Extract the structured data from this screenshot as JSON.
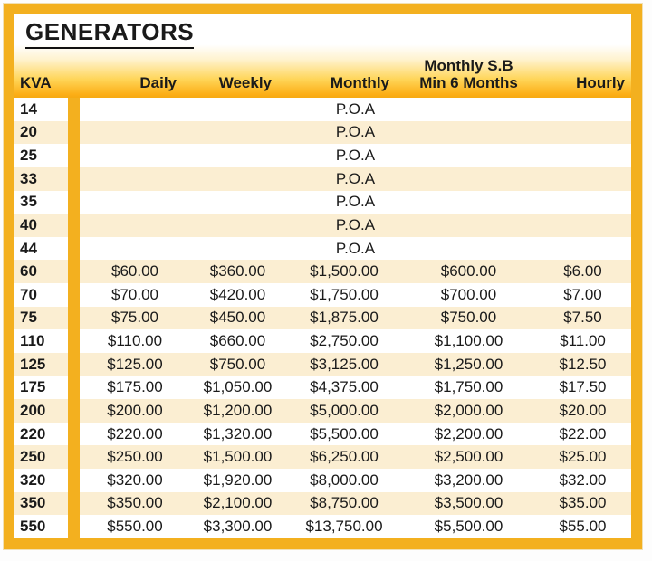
{
  "title": "GENERATORS",
  "header": {
    "kva": "KVA",
    "daily": "Daily",
    "weekly": "Weekly",
    "monthly": "Monthly",
    "monthly_sb_line1": "Monthly S.B",
    "monthly_sb_line2": "Min 6 Months",
    "hourly": "Hourly"
  },
  "poa_label": "P.O.A",
  "rows": [
    {
      "kva": "14",
      "poa": true
    },
    {
      "kva": "20",
      "poa": true
    },
    {
      "kva": "25",
      "poa": true
    },
    {
      "kva": "33",
      "poa": true
    },
    {
      "kva": "35",
      "poa": true
    },
    {
      "kva": "40",
      "poa": true
    },
    {
      "kva": "44",
      "poa": true
    },
    {
      "kva": "60",
      "daily": "$60.00",
      "weekly": "$360.00",
      "monthly": "$1,500.00",
      "min6": "$600.00",
      "hourly": "$6.00"
    },
    {
      "kva": "70",
      "daily": "$70.00",
      "weekly": "$420.00",
      "monthly": "$1,750.00",
      "min6": "$700.00",
      "hourly": "$7.00"
    },
    {
      "kva": "75",
      "daily": "$75.00",
      "weekly": "$450.00",
      "monthly": "$1,875.00",
      "min6": "$750.00",
      "hourly": "$7.50"
    },
    {
      "kva": "110",
      "daily": "$110.00",
      "weekly": "$660.00",
      "monthly": "$2,750.00",
      "min6": "$1,100.00",
      "hourly": "$11.00"
    },
    {
      "kva": "125",
      "daily": "$125.00",
      "weekly": "$750.00",
      "monthly": "$3,125.00",
      "min6": "$1,250.00",
      "hourly": "$12.50"
    },
    {
      "kva": "175",
      "daily": "$175.00",
      "weekly": "$1,050.00",
      "monthly": "$4,375.00",
      "min6": "$1,750.00",
      "hourly": "$17.50"
    },
    {
      "kva": "200",
      "daily": "$200.00",
      "weekly": "$1,200.00",
      "monthly": "$5,000.00",
      "min6": "$2,000.00",
      "hourly": "$20.00"
    },
    {
      "kva": "220",
      "daily": "$220.00",
      "weekly": "$1,320.00",
      "monthly": "$5,500.00",
      "min6": "$2,200.00",
      "hourly": "$22.00"
    },
    {
      "kva": "250",
      "daily": "$250.00",
      "weekly": "$1,500.00",
      "monthly": "$6,250.00",
      "min6": "$2,500.00",
      "hourly": "$25.00"
    },
    {
      "kva": "320",
      "daily": "$320.00",
      "weekly": "$1,920.00",
      "monthly": "$8,000.00",
      "min6": "$3,200.00",
      "hourly": "$32.00"
    },
    {
      "kva": "350",
      "daily": "$350.00",
      "weekly": "$2,100.00",
      "monthly": "$8,750.00",
      "min6": "$3,500.00",
      "hourly": "$35.00"
    },
    {
      "kva": "550",
      "daily": "$550.00",
      "weekly": "$3,300.00",
      "monthly": "$13,750.00",
      "min6": "$5,500.00",
      "hourly": "$55.00"
    }
  ],
  "colors": {
    "frame_gold": "#F3B01F",
    "header_amber": "#FBAE17",
    "row_stripe_cream": "#FBEED2",
    "row_white": "#FFFFFF",
    "text": "#1A1A1A"
  }
}
